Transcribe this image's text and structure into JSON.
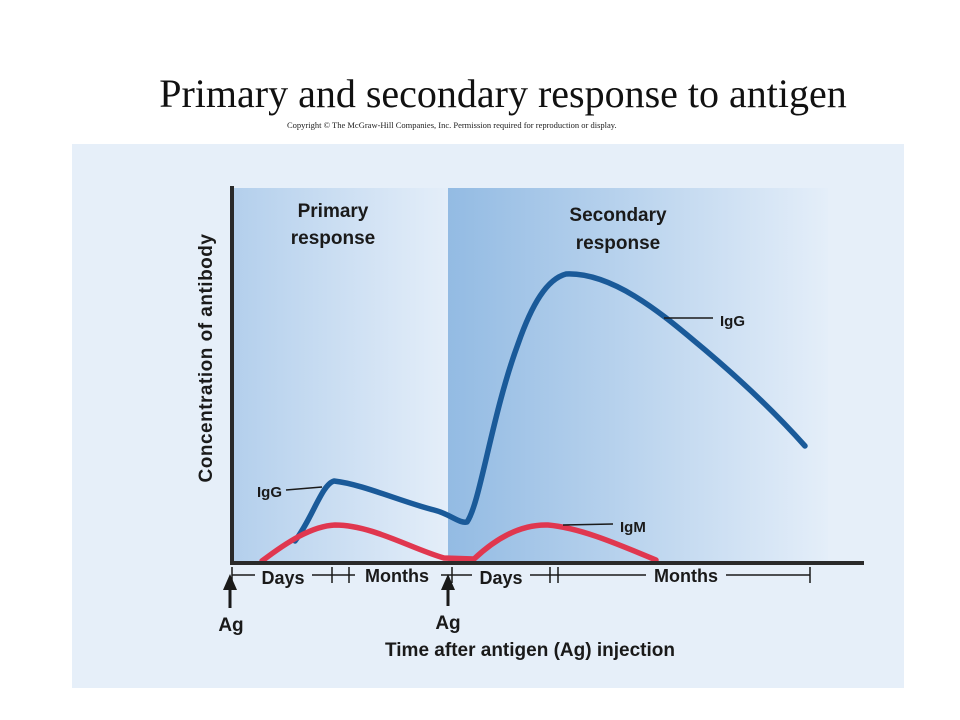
{
  "title": "Primary and secondary response to antigen",
  "copyright": "Copyright © The McGraw-Hill Companies, Inc. Permission required for reproduction or display.",
  "diagram": {
    "y_axis_label": "Concentration of antibody",
    "x_axis_label": "Time after antigen (Ag) injection",
    "primary_label_line1": "Primary",
    "primary_label_line2": "response",
    "secondary_label_line1": "Secondary",
    "secondary_label_line2": "response",
    "curve_labels": {
      "igg_primary": "IgG",
      "igg_secondary": "IgG",
      "igm": "IgM"
    },
    "time_segments": [
      "Days",
      "Months",
      "Days",
      "Months"
    ],
    "antigen_marker_1": "Ag",
    "antigen_marker_2": "Ag",
    "colors": {
      "panel_background": "#e6eff9",
      "primary_region": "#bdd6ee",
      "secondary_region": "#9fc3e6",
      "igg_curve": "#1a5a99",
      "igm_curve": "#e0374f",
      "axis": "#2a2a2a"
    }
  }
}
